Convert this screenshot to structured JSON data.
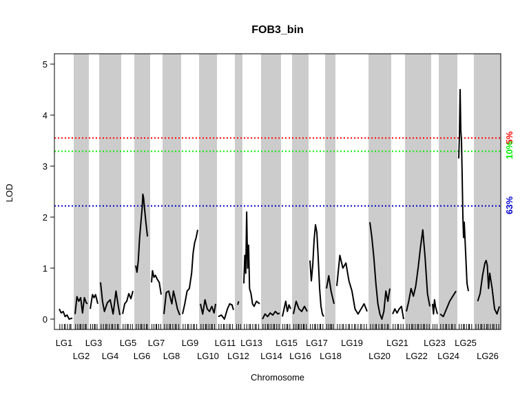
{
  "chart_data": {
    "type": "line",
    "title": "FOB3_bin",
    "xlabel": "Chromosome",
    "ylabel": "LOD",
    "ylim": [
      0,
      5
    ],
    "yticks": [
      0,
      1,
      2,
      3,
      4,
      5
    ],
    "grid": false,
    "thresholds": [
      {
        "label": "5%",
        "value": 3.55,
        "color": "#ff0000"
      },
      {
        "label": "10%",
        "value": 3.29,
        "color": "#00ee00"
      },
      {
        "label": "63%",
        "value": 2.22,
        "color": "#0000cc"
      }
    ],
    "chromosomes": [
      {
        "name": "LG1",
        "shaded": false,
        "points": [
          [
            0,
            0.2
          ],
          [
            0.15,
            0.12
          ],
          [
            0.3,
            0.15
          ],
          [
            0.45,
            0.05
          ],
          [
            0.6,
            0.08
          ],
          [
            0.75,
            0.0
          ],
          [
            1,
            0.02
          ]
        ]
      },
      {
        "name": "LG2",
        "shaded": true,
        "points": [
          [
            0,
            0.1
          ],
          [
            0.15,
            0.44
          ],
          [
            0.3,
            0.35
          ],
          [
            0.45,
            0.42
          ],
          [
            0.6,
            0.12
          ],
          [
            0.75,
            0.42
          ],
          [
            0.9,
            0.32
          ],
          [
            1,
            0.3
          ]
        ]
      },
      {
        "name": "LG3",
        "shaded": false,
        "points": [
          [
            0,
            0.2
          ],
          [
            0.3,
            0.48
          ],
          [
            0.5,
            0.42
          ],
          [
            0.7,
            0.48
          ],
          [
            1,
            0.3
          ]
        ]
      },
      {
        "name": "LG4",
        "shaded": true,
        "points": [
          [
            0,
            0.72
          ],
          [
            0.1,
            0.35
          ],
          [
            0.2,
            0.15
          ],
          [
            0.35,
            0.32
          ],
          [
            0.5,
            0.38
          ],
          [
            0.65,
            0.1
          ],
          [
            0.8,
            0.55
          ],
          [
            0.9,
            0.3
          ],
          [
            1,
            0.08
          ]
        ]
      },
      {
        "name": "LG5",
        "shaded": false,
        "points": [
          [
            0,
            0.1
          ],
          [
            0.2,
            0.3
          ],
          [
            0.4,
            0.35
          ],
          [
            0.6,
            0.5
          ],
          [
            0.8,
            0.4
          ],
          [
            1,
            0.55
          ]
        ]
      },
      {
        "name": "LG6",
        "shaded": true,
        "points": [
          [
            0,
            1.05
          ],
          [
            0.1,
            0.92
          ],
          [
            0.2,
            1.15
          ],
          [
            0.3,
            1.6
          ],
          [
            0.4,
            1.9
          ],
          [
            0.5,
            2.2
          ],
          [
            0.55,
            2.45
          ],
          [
            0.6,
            2.38
          ],
          [
            0.7,
            2.1
          ],
          [
            0.8,
            1.85
          ],
          [
            0.9,
            1.62
          ]
        ]
      },
      {
        "name": "LG7",
        "shaded": false,
        "points": [
          [
            0,
            0.72
          ],
          [
            0.1,
            0.95
          ],
          [
            0.25,
            0.82
          ],
          [
            0.4,
            0.86
          ],
          [
            0.6,
            0.78
          ],
          [
            0.8,
            0.72
          ],
          [
            1,
            0.48
          ]
        ]
      },
      {
        "name": "LG8",
        "shaded": true,
        "points": [
          [
            0,
            0.1
          ],
          [
            0.15,
            0.52
          ],
          [
            0.3,
            0.55
          ],
          [
            0.4,
            0.42
          ],
          [
            0.5,
            0.3
          ],
          [
            0.6,
            0.55
          ],
          [
            0.7,
            0.42
          ],
          [
            0.85,
            0.2
          ],
          [
            1,
            0.08
          ]
        ]
      },
      {
        "name": "LG9",
        "shaded": false,
        "points": [
          [
            0,
            0.1
          ],
          [
            0.15,
            0.3
          ],
          [
            0.3,
            0.55
          ],
          [
            0.45,
            0.6
          ],
          [
            0.6,
            0.9
          ],
          [
            0.7,
            1.3
          ],
          [
            0.8,
            1.5
          ],
          [
            0.9,
            1.6
          ],
          [
            1,
            1.75
          ]
        ]
      },
      {
        "name": "LG10",
        "shaded": true,
        "points": [
          [
            0,
            0.3
          ],
          [
            0.15,
            0.1
          ],
          [
            0.3,
            0.38
          ],
          [
            0.45,
            0.2
          ],
          [
            0.6,
            0.15
          ],
          [
            0.75,
            0.25
          ],
          [
            0.9,
            0.12
          ],
          [
            1,
            0.3
          ]
        ]
      },
      {
        "name": "LG11",
        "shaded": false,
        "points": [
          [
            0,
            0.05
          ],
          [
            0.2,
            0.08
          ],
          [
            0.4,
            0.0
          ],
          [
            0.6,
            0.2
          ],
          [
            0.75,
            0.3
          ],
          [
            0.9,
            0.28
          ],
          [
            1,
            0.18
          ]
        ]
      },
      {
        "name": "LG12",
        "shaded": true,
        "points": [
          [
            0.3,
            0.28
          ],
          [
            0.5,
            0.35
          ]
        ]
      },
      {
        "name": "LG13",
        "shaded": false,
        "points": [
          [
            0,
            0.7
          ],
          [
            0.06,
            1.25
          ],
          [
            0.12,
            0.9
          ],
          [
            0.18,
            2.1
          ],
          [
            0.24,
            1.0
          ],
          [
            0.3,
            1.45
          ],
          [
            0.36,
            0.6
          ],
          [
            0.45,
            0.5
          ],
          [
            0.55,
            0.3
          ],
          [
            0.65,
            0.25
          ],
          [
            0.8,
            0.35
          ],
          [
            1,
            0.3
          ]
        ]
      },
      {
        "name": "LG14",
        "shaded": true,
        "points": [
          [
            0,
            0.0
          ],
          [
            0.15,
            0.1
          ],
          [
            0.3,
            0.05
          ],
          [
            0.45,
            0.12
          ],
          [
            0.6,
            0.08
          ],
          [
            0.75,
            0.15
          ],
          [
            0.9,
            0.1
          ],
          [
            1,
            0.12
          ]
        ]
      },
      {
        "name": "LG15",
        "shaded": false,
        "points": [
          [
            0,
            0.05
          ],
          [
            0.2,
            0.2
          ],
          [
            0.4,
            0.35
          ],
          [
            0.6,
            0.15
          ],
          [
            0.8,
            0.28
          ],
          [
            1,
            0.2
          ]
        ]
      },
      {
        "name": "LG16",
        "shaded": true,
        "points": [
          [
            0,
            0.1
          ],
          [
            0.2,
            0.35
          ],
          [
            0.4,
            0.2
          ],
          [
            0.6,
            0.15
          ],
          [
            0.8,
            0.25
          ],
          [
            1,
            0.15
          ]
        ]
      },
      {
        "name": "LG17",
        "shaded": false,
        "points": [
          [
            0,
            1.15
          ],
          [
            0.1,
            0.75
          ],
          [
            0.2,
            1.05
          ],
          [
            0.3,
            1.55
          ],
          [
            0.4,
            1.85
          ],
          [
            0.5,
            1.7
          ],
          [
            0.6,
            1.2
          ],
          [
            0.7,
            0.6
          ],
          [
            0.8,
            0.25
          ],
          [
            0.9,
            0.1
          ],
          [
            1,
            0.05
          ]
        ]
      },
      {
        "name": "LG18",
        "shaded": true,
        "points": [
          [
            0,
            0.6
          ],
          [
            0.3,
            0.85
          ],
          [
            0.6,
            0.55
          ],
          [
            1,
            0.3
          ]
        ]
      },
      {
        "name": "LG19",
        "shaded": false,
        "points": [
          [
            0,
            0.65
          ],
          [
            0.1,
            1.25
          ],
          [
            0.2,
            1.0
          ],
          [
            0.3,
            1.1
          ],
          [
            0.4,
            0.75
          ],
          [
            0.5,
            0.55
          ],
          [
            0.6,
            0.2
          ],
          [
            0.7,
            0.1
          ],
          [
            0.8,
            0.2
          ],
          [
            0.9,
            0.3
          ],
          [
            1,
            0.15
          ]
        ]
      },
      {
        "name": "LG20",
        "shaded": true,
        "points": [
          [
            0,
            1.9
          ],
          [
            0.1,
            1.6
          ],
          [
            0.2,
            1.2
          ],
          [
            0.3,
            0.7
          ],
          [
            0.4,
            0.3
          ],
          [
            0.5,
            0.1
          ],
          [
            0.6,
            0.0
          ],
          [
            0.7,
            0.15
          ],
          [
            0.8,
            0.55
          ],
          [
            0.9,
            0.35
          ],
          [
            1,
            0.6
          ]
        ]
      },
      {
        "name": "LG21",
        "shaded": false,
        "points": [
          [
            0,
            0.1
          ],
          [
            0.2,
            0.2
          ],
          [
            0.4,
            0.12
          ],
          [
            0.6,
            0.2
          ],
          [
            0.8,
            0.25
          ],
          [
            1,
            0.0
          ]
        ]
      },
      {
        "name": "LG22",
        "shaded": true,
        "points": [
          [
            0,
            0.15
          ],
          [
            0.1,
            0.35
          ],
          [
            0.2,
            0.6
          ],
          [
            0.3,
            0.45
          ],
          [
            0.4,
            0.65
          ],
          [
            0.5,
            1.0
          ],
          [
            0.6,
            1.4
          ],
          [
            0.7,
            1.75
          ],
          [
            0.8,
            1.2
          ],
          [
            0.9,
            0.5
          ],
          [
            1,
            0.25
          ]
        ]
      },
      {
        "name": "LG23",
        "shaded": false,
        "points": [
          [
            0,
            0.3
          ],
          [
            0.2,
            0.1
          ],
          [
            0.4,
            0.38
          ],
          [
            0.6,
            0.25
          ],
          [
            1,
            0.1
          ]
        ]
      },
      {
        "name": "LG24",
        "shaded": true,
        "points": [
          [
            0,
            0.1
          ],
          [
            0.2,
            0.05
          ],
          [
            0.4,
            0.2
          ],
          [
            0.6,
            0.35
          ],
          [
            0.8,
            0.45
          ],
          [
            1,
            0.55
          ]
        ]
      },
      {
        "name": "LG25",
        "shaded": false,
        "points": [
          [
            0,
            3.15
          ],
          [
            0.05,
            3.6
          ],
          [
            0.1,
            4.5
          ],
          [
            0.15,
            3.7
          ],
          [
            0.2,
            3.5
          ],
          [
            0.25,
            2.8
          ],
          [
            0.3,
            2.0
          ],
          [
            0.35,
            1.6
          ],
          [
            0.4,
            1.9
          ],
          [
            0.5,
            1.3
          ],
          [
            0.6,
            0.7
          ],
          [
            0.7,
            0.55
          ]
        ]
      },
      {
        "name": "LG26",
        "shaded": true,
        "points": [
          [
            0.1,
            0.35
          ],
          [
            0.2,
            0.5
          ],
          [
            0.3,
            0.85
          ],
          [
            0.4,
            1.1
          ],
          [
            0.45,
            1.15
          ],
          [
            0.5,
            1.05
          ],
          [
            0.55,
            0.6
          ],
          [
            0.6,
            0.9
          ],
          [
            0.7,
            0.6
          ],
          [
            0.8,
            0.2
          ],
          [
            0.9,
            0.1
          ],
          [
            1,
            0.25
          ]
        ]
      }
    ]
  }
}
